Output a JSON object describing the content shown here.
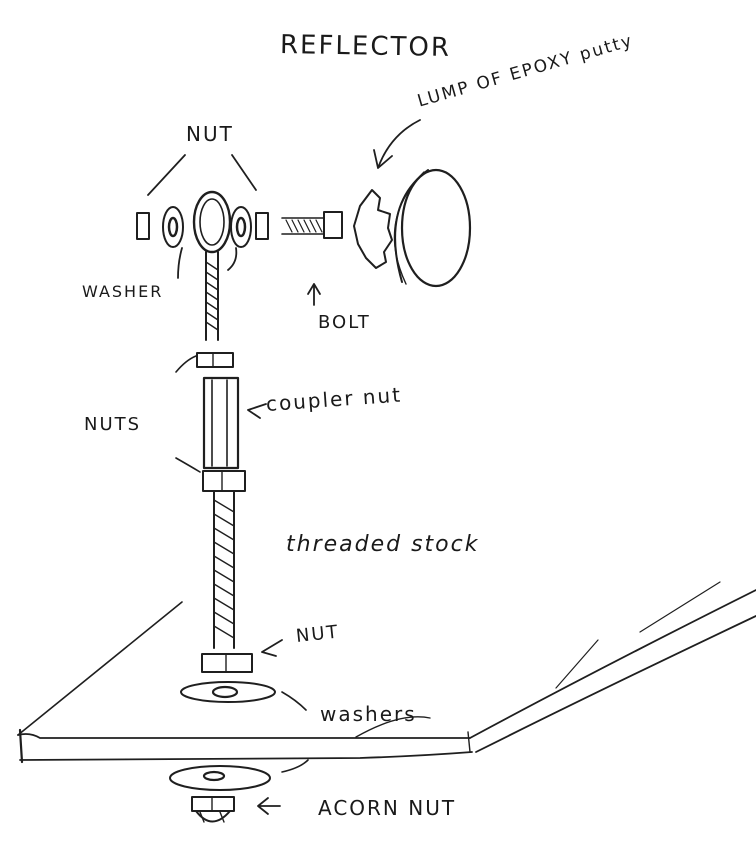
{
  "labels": {
    "title": "REFLECTOR",
    "epoxy": "LUMP OF EPOXY putty",
    "nut_top": "NUT",
    "washer": "WASHER",
    "bolt": "BOLT",
    "nuts": "NUTS",
    "coupler": "coupler nut",
    "threaded": "threaded stock",
    "nut_lower": "NUT",
    "washers": "washers",
    "acorn": "ACORN NUT"
  }
}
